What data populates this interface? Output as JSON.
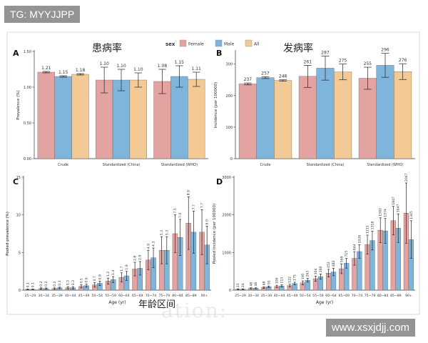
{
  "watermarks": {
    "top": "TG: MYYJJPP",
    "bottom": "www.xsxjdjj.com",
    "background": "ation:"
  },
  "legend": {
    "title": "sex",
    "items": [
      {
        "label": "Female",
        "color": "#E3A3A0"
      },
      {
        "label": "Male",
        "color": "#7FB5DB"
      },
      {
        "label": "All",
        "color": "#F3C995"
      }
    ]
  },
  "chart_data": [
    {
      "panel": "A",
      "type": "bar",
      "title": "患病率",
      "ylabel": "Prevalence (%)",
      "ylim": [
        0,
        1.5
      ],
      "yticks": [
        "0.00",
        "0.50",
        "1.00",
        "1.50"
      ],
      "categories": [
        "Crude",
        "Standardized (China)",
        "Standardized (WHO)"
      ],
      "series": [
        {
          "name": "Female",
          "values": [
            1.21,
            1.1,
            1.08
          ],
          "errors": [
            0.01,
            0.18,
            0.17
          ],
          "labels": [
            "1.21",
            "1.10",
            "1.08"
          ]
        },
        {
          "name": "Male",
          "values": [
            1.15,
            1.1,
            1.15
          ],
          "errors": [
            0.01,
            0.15,
            0.15
          ],
          "labels": [
            "1.15",
            "1.10",
            "1.15"
          ]
        },
        {
          "name": "All",
          "values": [
            1.18,
            1.1,
            1.11
          ],
          "errors": [
            0.01,
            0.1,
            0.1
          ],
          "labels": [
            "1.18",
            "1.10",
            "1.11"
          ]
        }
      ]
    },
    {
      "panel": "B",
      "type": "bar",
      "title": "发病率",
      "ylabel": "Incidence (per 100000)",
      "ylim": [
        0,
        340
      ],
      "yticks": [
        "0",
        "100",
        "200",
        "300"
      ],
      "categories": [
        "Crude",
        "Standardized (China)",
        "Standardized (WHO)"
      ],
      "series": [
        {
          "name": "Female",
          "values": [
            237,
            261,
            255
          ],
          "errors": [
            3,
            35,
            35
          ],
          "labels": [
            "237",
            "261",
            "255"
          ]
        },
        {
          "name": "Male",
          "values": [
            257,
            287,
            296
          ],
          "errors": [
            3,
            38,
            38
          ],
          "labels": [
            "257",
            "287",
            "296"
          ]
        },
        {
          "name": "All",
          "values": [
            248,
            275,
            276
          ],
          "errors": [
            2,
            25,
            25
          ],
          "labels": [
            "248",
            "275",
            "276"
          ]
        }
      ]
    },
    {
      "panel": "C",
      "type": "bar",
      "ylabel": "Pooled prevalence (%)",
      "xlabel": "Age (yr)",
      "ylim": [
        0,
        15
      ],
      "yticks": [
        "0",
        "5",
        "10",
        "15"
      ],
      "categories": [
        "25~29",
        "30~34",
        "35~39",
        "40~44",
        "45~49",
        "50~54",
        "55~59",
        "60~64",
        "65~69",
        "70~74",
        "75~79",
        "80~84",
        "85~89",
        "90+"
      ],
      "series": [
        {
          "name": "Female",
          "values": [
            0.1,
            0.2,
            0.2,
            0.3,
            0.5,
            0.7,
            1.2,
            1.7,
            2.8,
            4.0,
            5.3,
            7.5,
            8.9,
            7.7
          ],
          "errors": [
            0.05,
            0.1,
            0.1,
            0.15,
            0.2,
            0.3,
            0.4,
            0.6,
            0.9,
            1.3,
            1.8,
            2.5,
            3.5,
            3.0
          ],
          "labels": [
            "0.1",
            "0.2",
            "0.2",
            "0.3",
            "0.5",
            "0.7",
            "1.2",
            "1.7",
            "2.8",
            "4.0",
            "5.3",
            "7.5",
            "8.9",
            "7.7"
          ]
        },
        {
          "name": "Male",
          "values": [
            0.1,
            0.2,
            0.3,
            0.3,
            0.6,
            0.9,
            1.4,
            1.9,
            2.9,
            4.3,
            5.3,
            7.0,
            7.7,
            6.0
          ],
          "errors": [
            0.05,
            0.1,
            0.1,
            0.15,
            0.2,
            0.3,
            0.4,
            0.6,
            0.9,
            1.3,
            1.8,
            2.4,
            2.8,
            2.5
          ],
          "labels": [
            "0.1",
            "0.2",
            "0.3",
            "0.3",
            "0.6",
            "0.9",
            "1.4",
            "1.9",
            "2.9",
            "4.3",
            "5.3",
            "7.0",
            "7.7",
            "6.0"
          ]
        }
      ],
      "annotation": "年龄区间"
    },
    {
      "panel": "D",
      "type": "bar",
      "ylabel": "Pooled incidence (per 100000)",
      "xlabel": "Age (yr)",
      "ylim": [
        0,
        3000
      ],
      "yticks": [
        "0",
        "1000",
        "2000",
        "3000"
      ],
      "categories": [
        "25~29",
        "30~34",
        "35~39",
        "40~44",
        "45~49",
        "50~54",
        "55~59",
        "60~64",
        "65~69",
        "70~74",
        "75~79",
        "80~84",
        "85~89",
        "90+"
      ],
      "series": [
        {
          "name": "Female",
          "values": [
            23,
            48,
            68,
            100,
            122,
            195,
            304,
            452,
            569,
            844,
            1211,
            1592,
            1847,
            2047
          ],
          "errors": [
            10,
            15,
            20,
            30,
            35,
            50,
            70,
            100,
            130,
            180,
            250,
            330,
            380,
            800
          ],
          "labels": [
            "23",
            "48",
            "68",
            "100",
            "122",
            "195",
            "304",
            "452",
            "569",
            "844",
            "1211",
            "1592",
            "1847",
            "2047"
          ]
        },
        {
          "name": "Male",
          "values": [
            24,
            48,
            91,
            113,
            175,
            263,
            360,
            482,
            715,
            1026,
            1318,
            1574,
            1647,
            1345
          ],
          "errors": [
            10,
            15,
            20,
            30,
            35,
            50,
            70,
            100,
            130,
            180,
            250,
            330,
            380,
            500
          ],
          "labels": [
            "24",
            "48",
            "91",
            "113",
            "175",
            "263",
            "360",
            "482",
            "715",
            "1026",
            "1318",
            "1574",
            "1647",
            "1345"
          ]
        }
      ]
    }
  ]
}
